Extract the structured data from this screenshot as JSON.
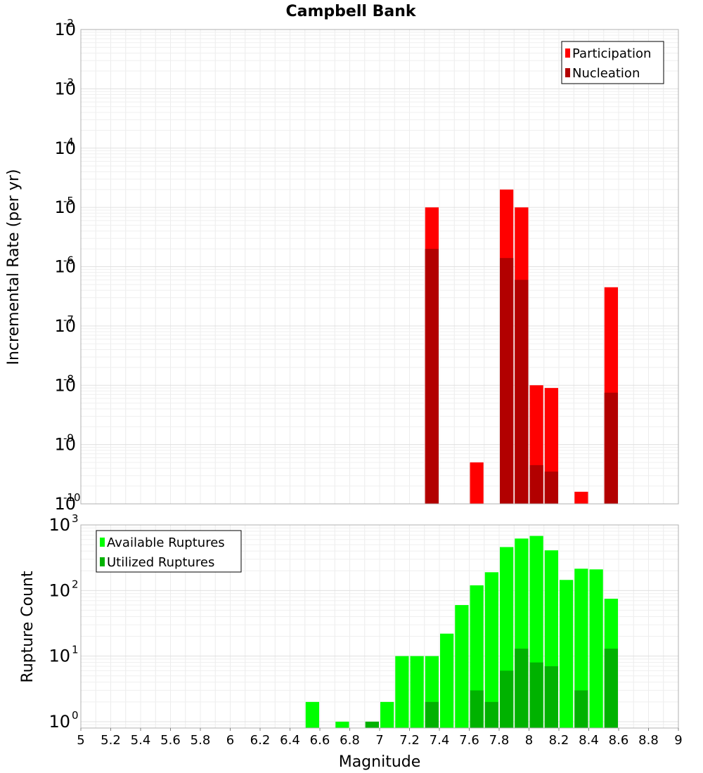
{
  "chart_data": [
    {
      "type": "bar",
      "title": "Campbell Bank",
      "ylabel": "Incremental Rate (per yr)",
      "xlabel": "",
      "yscale": "log",
      "ylim": [
        1e-10,
        0.01
      ],
      "xlim": [
        5,
        9
      ],
      "ytick_labels": [
        {
          "base": "10",
          "exp": "-2"
        },
        {
          "base": "10",
          "exp": "-3"
        },
        {
          "base": "10",
          "exp": "-4"
        },
        {
          "base": "10",
          "exp": "-5"
        },
        {
          "base": "10",
          "exp": "-6"
        },
        {
          "base": "10",
          "exp": "-7"
        },
        {
          "base": "10",
          "exp": "-8"
        },
        {
          "base": "10",
          "exp": "-9"
        },
        {
          "base": "10",
          "exp": "-10"
        }
      ],
      "legend_position": "top-right",
      "grid": true,
      "bar_width": 0.1,
      "series": [
        {
          "name": "Participation",
          "color": "#ff0000",
          "x": [
            7.35,
            7.65,
            7.85,
            7.95,
            8.05,
            8.15,
            8.35,
            8.55
          ],
          "values": [
            1e-05,
            5e-10,
            2e-05,
            1e-05,
            1e-08,
            9e-09,
            1.6e-10,
            4.5e-07
          ]
        },
        {
          "name": "Nucleation",
          "color": "#b20000",
          "x": [
            7.35,
            7.85,
            7.95,
            8.05,
            8.15,
            8.55
          ],
          "values": [
            2e-06,
            1.4e-06,
            6e-07,
            4.5e-10,
            3.5e-10,
            7.5e-09
          ]
        }
      ]
    },
    {
      "type": "bar",
      "ylabel": "Rupture Count",
      "xlabel": "Magnitude",
      "yscale": "log",
      "ylim": [
        0.8,
        1000
      ],
      "xlim": [
        5,
        9
      ],
      "x_ticks": [
        "5",
        "5.2",
        "5.4",
        "5.6",
        "5.8",
        "6",
        "6.2",
        "6.4",
        "6.6",
        "6.8",
        "7",
        "7.2",
        "7.4",
        "7.6",
        "7.8",
        "8",
        "8.2",
        "8.4",
        "8.6",
        "8.8",
        "9"
      ],
      "ytick_labels": [
        {
          "base": "10",
          "exp": "3",
          "value": 1000
        },
        {
          "base": "10",
          "exp": "2",
          "value": 100
        },
        {
          "base": "10",
          "exp": "1",
          "value": 10
        },
        {
          "base": "10",
          "exp": "0",
          "value": 1
        }
      ],
      "legend_position": "top-left",
      "grid": true,
      "bar_width": 0.1,
      "series": [
        {
          "name": "Available Ruptures",
          "color": "#00ff00",
          "x": [
            6.55,
            6.75,
            6.95,
            7.05,
            7.15,
            7.25,
            7.35,
            7.45,
            7.55,
            7.65,
            7.75,
            7.85,
            7.95,
            8.05,
            8.15,
            8.25,
            8.35,
            8.45,
            8.55
          ],
          "values": [
            2,
            1,
            1,
            2,
            10,
            10,
            10,
            22,
            60,
            120,
            190,
            460,
            620,
            680,
            410,
            145,
            215,
            210,
            75
          ]
        },
        {
          "name": "Utilized Ruptures",
          "color": "#00b200",
          "x": [
            6.95,
            7.35,
            7.65,
            7.75,
            7.85,
            7.95,
            8.05,
            8.15,
            8.35,
            8.55
          ],
          "values": [
            1,
            2,
            3,
            2,
            6,
            13,
            8,
            7,
            3,
            13
          ]
        }
      ]
    }
  ]
}
